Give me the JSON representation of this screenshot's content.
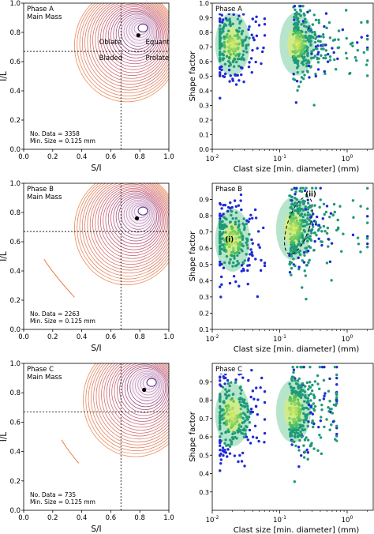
{
  "figure": {
    "left_xlabel": "S/I",
    "left_ylabel": "I/L",
    "right_xlabel": "Clast size [min. diameter] (mm)",
    "right_ylabel": "Shape factor"
  },
  "colors": {
    "contour_outer": "#e8804a",
    "contour_mid": "#c0506a",
    "contour_inner": "#5a2a88",
    "fill_light": "#f6e3ef",
    "dashed": "#000000",
    "scatter_blue": "#1f2bd6",
    "scatter_teal": "#1f9a78",
    "scatter_green": "#2fb56a",
    "scatter_yellow": "#e8f05a"
  },
  "chart_data": [
    {
      "type": "contour",
      "panel": "Phase A shape diagram",
      "title_lines": [
        "Phase A",
        "Main Mass"
      ],
      "xlabel": "S/I",
      "ylabel": "I/L",
      "xlim": [
        0,
        1.0
      ],
      "ylim": [
        0,
        1.0
      ],
      "xticks": [
        "0.0",
        "0.2",
        "0.4",
        "0.6",
        "0.8",
        "1.0"
      ],
      "yticks": [
        "0.0",
        "0.2",
        "0.4",
        "0.6",
        "0.8",
        "1.0"
      ],
      "threshold": {
        "x": 0.67,
        "y": 0.67
      },
      "centroid": {
        "x": 0.79,
        "y": 0.78
      },
      "kde_peak": {
        "x": 0.81,
        "y": 0.83
      },
      "class_labels": [
        "Oblate",
        "Equant",
        "Bladed",
        "Prolate"
      ],
      "annotations": [
        "No. Data = 3358",
        "Min. Size = 0.125 mm"
      ]
    },
    {
      "type": "scatter",
      "panel": "Phase A scatter",
      "title": "Phase A",
      "xlabel": "Clast size [min. diameter] (mm)",
      "ylabel": "Shape factor",
      "xscale": "log",
      "xlim": [
        0.01,
        2.5
      ],
      "ylim": [
        0.0,
        1.0
      ],
      "xticks": [
        "10^-2",
        "10^-1",
        "10^0"
      ],
      "yticks": [
        "0.0",
        "0.1",
        "0.2",
        "0.3",
        "0.4",
        "0.5",
        "0.6",
        "0.7",
        "0.8",
        "0.9",
        "1.0"
      ],
      "clusters": [
        {
          "name": "fine",
          "x_range": [
            0.013,
            0.06
          ],
          "y_range": [
            0.35,
            0.98
          ],
          "center": {
            "x": 0.02,
            "y": 0.72
          }
        },
        {
          "name": "coarse",
          "x_range": [
            0.12,
            2.0
          ],
          "y_range": [
            0.2,
            0.98
          ],
          "center": {
            "x": 0.18,
            "y": 0.72
          }
        }
      ]
    },
    {
      "type": "contour",
      "panel": "Phase B shape diagram",
      "title_lines": [
        "Phase B",
        "Main Mass"
      ],
      "xlabel": "S/I",
      "ylabel": "I/L",
      "xlim": [
        0,
        1.0
      ],
      "ylim": [
        0,
        1.0
      ],
      "xticks": [
        "0.0",
        "0.2",
        "0.4",
        "0.6",
        "0.8",
        "1.0"
      ],
      "yticks": [
        "0.0",
        "0.2",
        "0.4",
        "0.6",
        "0.8",
        "1.0"
      ],
      "threshold": {
        "x": 0.67,
        "y": 0.67
      },
      "centroid": {
        "x": 0.78,
        "y": 0.76
      },
      "kde_peak": {
        "x": 0.81,
        "y": 0.81
      },
      "annotations": [
        "No. Data = 2263",
        "Min. Size = 0.125 mm"
      ]
    },
    {
      "type": "scatter",
      "panel": "Phase B scatter",
      "title": "Phase B",
      "xlabel": "Clast size [min. diameter] (mm)",
      "ylabel": "Shape factor",
      "xscale": "log",
      "xlim": [
        0.01,
        2.5
      ],
      "ylim": [
        0.1,
        1.0
      ],
      "xticks": [
        "10^-2",
        "10^-1",
        "10^0"
      ],
      "yticks": [
        "0.1",
        "0.2",
        "0.3",
        "0.4",
        "0.5",
        "0.6",
        "0.7",
        "0.8",
        "0.9"
      ],
      "region_labels": [
        "(i)",
        "(ii)"
      ],
      "clusters": [
        {
          "name": "fine",
          "x_range": [
            0.013,
            0.06
          ],
          "y_range": [
            0.3,
            0.97
          ],
          "center": {
            "x": 0.02,
            "y": 0.65
          }
        },
        {
          "name": "coarse",
          "x_range": [
            0.12,
            2.0
          ],
          "y_range": [
            0.25,
            0.97
          ],
          "center": {
            "x": 0.16,
            "y": 0.72
          }
        }
      ]
    },
    {
      "type": "contour",
      "panel": "Phase C shape diagram",
      "title_lines": [
        "Phase C",
        "Main Mass"
      ],
      "xlabel": "S/I",
      "ylabel": "I/L",
      "xlim": [
        0,
        1.0
      ],
      "ylim": [
        0,
        1.0
      ],
      "xticks": [
        "0.0",
        "0.2",
        "0.4",
        "0.6",
        "0.8",
        "1.0"
      ],
      "yticks": [
        "0.0",
        "0.2",
        "0.4",
        "0.6",
        "0.8",
        "1.0"
      ],
      "threshold": {
        "x": 0.67,
        "y": 0.67
      },
      "centroid": {
        "x": 0.83,
        "y": 0.82
      },
      "kde_peak": {
        "x": 0.87,
        "y": 0.87
      },
      "annotations": [
        "No. Data = 735",
        "Min. Size = 0.125 mm"
      ]
    },
    {
      "type": "scatter",
      "panel": "Phase C scatter",
      "title": "Phase C",
      "xlabel": "Clast size [min. diameter] (mm)",
      "ylabel": "Shape factor",
      "xscale": "log",
      "xlim": [
        0.01,
        2.5
      ],
      "ylim": [
        0.2,
        1.0
      ],
      "xticks": [
        "10^-2",
        "10^-1",
        "10^0"
      ],
      "yticks": [
        "0.3",
        "0.4",
        "0.5",
        "0.6",
        "0.7",
        "0.8",
        "0.9"
      ],
      "clusters": [
        {
          "name": "fine",
          "x_range": [
            0.013,
            0.06
          ],
          "y_range": [
            0.3,
            0.97
          ],
          "center": {
            "x": 0.02,
            "y": 0.72
          }
        },
        {
          "name": "coarse",
          "x_range": [
            0.12,
            0.7
          ],
          "y_range": [
            0.35,
            0.98
          ],
          "center": {
            "x": 0.16,
            "y": 0.74
          }
        }
      ]
    }
  ]
}
